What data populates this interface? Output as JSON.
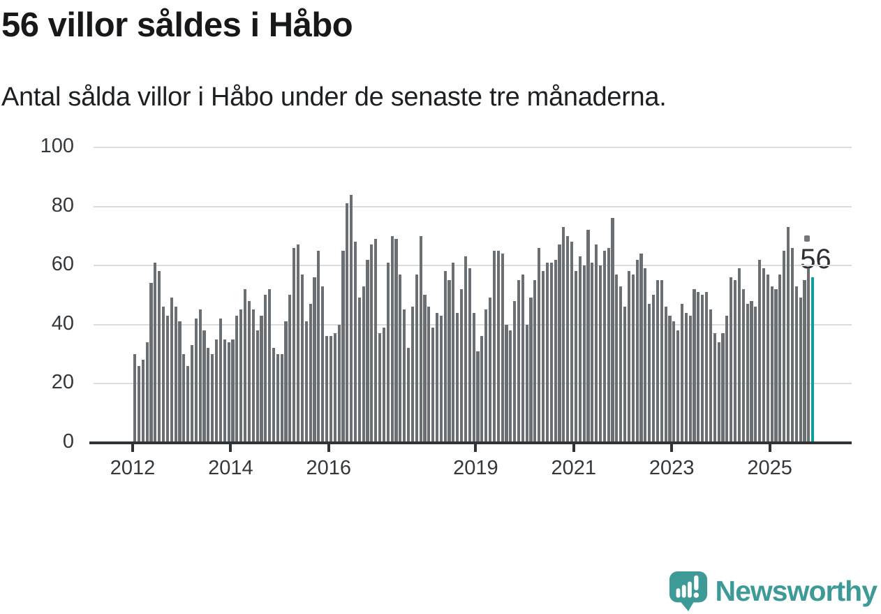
{
  "header": {
    "title": "56 villor såldes i Håbo",
    "subtitle": "Antal sålda villor i Håbo under de senaste tre månaderna."
  },
  "chart_data": {
    "type": "bar",
    "title": "56 villor såldes i Håbo",
    "subtitle": "Antal sålda villor i Håbo under de senaste tre månaderna.",
    "x_start": "2012-01",
    "x_end": "2025-11",
    "ylim": [
      0,
      100
    ],
    "yticks": [
      0,
      20,
      40,
      60,
      80,
      100
    ],
    "xtick_years": [
      2012,
      2014,
      2016,
      2019,
      2021,
      2023,
      2025
    ],
    "grid": "horizontal",
    "legend": "none",
    "annotation": {
      "text": "56",
      "value": 56,
      "x": "2025-11"
    },
    "colors": {
      "bar": "#6a6f74",
      "highlight": "#0d9e9e",
      "axis": "#2e3338",
      "grid": "#dcdcdc",
      "text": "#33383d",
      "brand": "#3d9a96"
    },
    "series": [
      {
        "year": 2012,
        "values": [
          30,
          26,
          28,
          34,
          54,
          61,
          58,
          46,
          43,
          49,
          46,
          41
        ]
      },
      {
        "year": 2013,
        "values": [
          30,
          26,
          33,
          42,
          45,
          38,
          32,
          30,
          35,
          42,
          35,
          34
        ]
      },
      {
        "year": 2014,
        "values": [
          35,
          43,
          45,
          52,
          48,
          45,
          38,
          43,
          50,
          52,
          32,
          30
        ]
      },
      {
        "year": 2015,
        "values": [
          30,
          41,
          50,
          66,
          67,
          57,
          41,
          47,
          56,
          65,
          53,
          36
        ]
      },
      {
        "year": 2016,
        "values": [
          36,
          37,
          40,
          65,
          81,
          84,
          68,
          49,
          53,
          62,
          67,
          69
        ]
      },
      {
        "year": 2017,
        "values": [
          37,
          39,
          61,
          70,
          69,
          57,
          45,
          32,
          46,
          57,
          70,
          50
        ]
      },
      {
        "year": 2018,
        "values": [
          46,
          39,
          44,
          43,
          58,
          55,
          61,
          44,
          52,
          63,
          59,
          44
        ]
      },
      {
        "year": 2019,
        "values": [
          31,
          36,
          45,
          49,
          65,
          65,
          64,
          40,
          38,
          48,
          55,
          57
        ]
      },
      {
        "year": 2020,
        "values": [
          40,
          49,
          55,
          66,
          58,
          61,
          61,
          62,
          67,
          73,
          70,
          68
        ]
      },
      {
        "year": 2021,
        "values": [
          58,
          63,
          60,
          72,
          61,
          67,
          60,
          65,
          66,
          76,
          57,
          53
        ]
      },
      {
        "year": 2022,
        "values": [
          46,
          58,
          57,
          62,
          64,
          59,
          47,
          50,
          55,
          55,
          46,
          43
        ]
      },
      {
        "year": 2023,
        "values": [
          41,
          38,
          47,
          44,
          43,
          52,
          51,
          50,
          51,
          45,
          37,
          34
        ]
      },
      {
        "year": 2024,
        "values": [
          37,
          43,
          56,
          55,
          59,
          52,
          47,
          48,
          46,
          62,
          59,
          57
        ]
      },
      {
        "year": 2025,
        "values": [
          53,
          52,
          57,
          65,
          73,
          66,
          53,
          49,
          55,
          59,
          56
        ]
      }
    ]
  },
  "footer": {
    "brand": "Newsworthy"
  }
}
